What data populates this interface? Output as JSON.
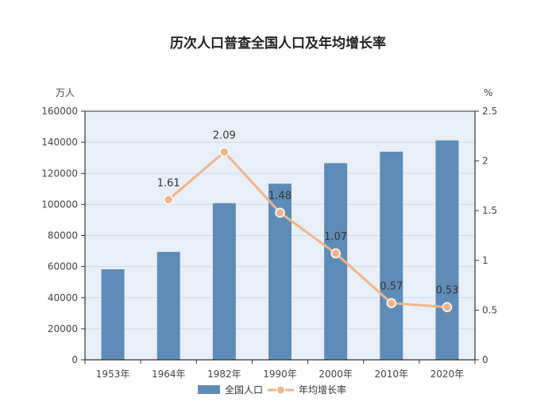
{
  "chart_data": {
    "type": "bar",
    "title": "历次人口普查全国人口及年均增长率",
    "categories": [
      "1953年",
      "1964年",
      "1982年",
      "1990年",
      "2000年",
      "2010年",
      "2020年"
    ],
    "series": [
      {
        "name": "全国人口",
        "type": "bar",
        "axis": "left",
        "values": [
          58260,
          69458,
          100818,
          113368,
          126583,
          133972,
          141178
        ]
      },
      {
        "name": "年均增长率",
        "type": "line",
        "axis": "right",
        "values": [
          null,
          1.61,
          2.09,
          1.48,
          1.07,
          0.57,
          0.53
        ],
        "labels": [
          "",
          "1.61",
          "2.09",
          "1.48",
          "1.07",
          "0.57",
          "0.53"
        ]
      }
    ],
    "yleft": {
      "unit": "万人",
      "min": 0,
      "max": 160000,
      "ticks": [
        "0",
        "20000",
        "40000",
        "60000",
        "80000",
        "100000",
        "120000",
        "140000",
        "160000"
      ]
    },
    "yright": {
      "unit": "%",
      "min": 0,
      "max": 2.5,
      "ticks": [
        "0",
        "0.5",
        "1",
        "1.5",
        "2",
        "2.5"
      ]
    },
    "legend": "bottom",
    "grid": true,
    "colors": {
      "bar": "#5f8cb6",
      "line": "#f0b48a",
      "plot_bg": "#e9eff9",
      "grid": "#cfd9ec"
    }
  }
}
